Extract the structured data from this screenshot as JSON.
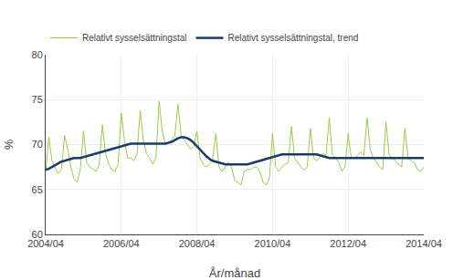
{
  "chart_data": {
    "type": "line",
    "xlabel": "År/månad",
    "ylabel": "%",
    "categories": [
      "2004/04",
      null,
      null,
      null,
      null,
      null,
      null,
      null,
      null,
      null,
      null,
      null,
      null,
      null,
      null,
      null,
      null,
      null,
      null,
      null,
      null,
      null,
      null,
      null,
      "2006/04",
      null,
      null,
      null,
      null,
      null,
      null,
      null,
      null,
      null,
      null,
      null,
      null,
      null,
      null,
      null,
      null,
      null,
      null,
      null,
      null,
      null,
      null,
      null,
      "2008/04",
      null,
      null,
      null,
      null,
      null,
      null,
      null,
      null,
      null,
      null,
      null,
      null,
      null,
      null,
      null,
      null,
      null,
      null,
      null,
      null,
      null,
      null,
      null,
      "2010/04",
      null,
      null,
      null,
      null,
      null,
      null,
      null,
      null,
      null,
      null,
      null,
      null,
      null,
      null,
      null,
      null,
      null,
      null,
      null,
      null,
      null,
      null,
      null,
      "2012/04",
      null,
      null,
      null,
      null,
      null,
      null,
      null,
      null,
      null,
      null,
      null,
      null,
      null,
      null,
      null,
      null,
      null,
      null,
      null,
      null,
      null,
      null,
      null,
      "2014/04"
    ],
    "ylim": [
      60,
      80
    ],
    "yticks": [
      60,
      65,
      70,
      75,
      80
    ],
    "grid": true,
    "legend": "top",
    "series": [
      {
        "name": "Relativt sysselsättningstal",
        "color": "#99cc44",
        "values": [
          67.0,
          70.8,
          68.2,
          67.4,
          66.8,
          67.2,
          71.0,
          69.5,
          67.5,
          66.2,
          65.8,
          67.3,
          71.5,
          68.0,
          67.5,
          67.3,
          67.0,
          67.8,
          72.2,
          69.0,
          67.8,
          67.2,
          67.0,
          67.8,
          73.5,
          70.5,
          68.5,
          68.5,
          68.2,
          69.0,
          73.8,
          70.5,
          69.0,
          68.5,
          67.8,
          68.5,
          74.8,
          71.5,
          70.0,
          70.2,
          70.5,
          71.0,
          74.5,
          71.0,
          70.5,
          70.0,
          69.5,
          69.8,
          71.5,
          68.5,
          67.8,
          67.5,
          67.8,
          68.5,
          71.2,
          67.5,
          67.0,
          67.5,
          68.0,
          67.5,
          66.0,
          65.8,
          65.5,
          67.0,
          67.2,
          67.2,
          67.5,
          67.5,
          67.0,
          65.8,
          65.5,
          66.2,
          71.2,
          67.5,
          67.0,
          67.5,
          67.8,
          68.0,
          72.0,
          68.5,
          68.0,
          67.5,
          67.2,
          67.5,
          71.8,
          68.5,
          68.2,
          68.5,
          69.0,
          68.8,
          73.0,
          68.8,
          68.5,
          68.0,
          67.0,
          67.5,
          71.2,
          68.5,
          68.5,
          68.8,
          69.2,
          68.8,
          73.0,
          69.5,
          68.5,
          68.0,
          67.5,
          67.2,
          72.5,
          68.8,
          68.5,
          68.2,
          67.8,
          67.5,
          71.8,
          68.5,
          68.2,
          68.0,
          67.2,
          67.0,
          67.5
        ]
      },
      {
        "name": "Relativt sysselsättningstal, trend",
        "color": "#1a3a6b",
        "values": [
          67.2,
          67.3,
          67.5,
          67.7,
          67.9,
          68.1,
          68.2,
          68.3,
          68.4,
          68.5,
          68.5,
          68.5,
          68.6,
          68.7,
          68.8,
          68.9,
          69.0,
          69.1,
          69.2,
          69.3,
          69.4,
          69.5,
          69.6,
          69.7,
          69.8,
          69.9,
          70.0,
          70.1,
          70.1,
          70.1,
          70.1,
          70.1,
          70.1,
          70.1,
          70.1,
          70.1,
          70.1,
          70.1,
          70.1,
          70.2,
          70.3,
          70.5,
          70.7,
          70.8,
          70.8,
          70.7,
          70.5,
          70.2,
          69.8,
          69.4,
          69.0,
          68.7,
          68.4,
          68.2,
          68.1,
          68.0,
          67.9,
          67.8,
          67.8,
          67.8,
          67.8,
          67.8,
          67.8,
          67.8,
          67.8,
          67.9,
          68.0,
          68.1,
          68.2,
          68.3,
          68.4,
          68.5,
          68.6,
          68.7,
          68.8,
          68.9,
          68.9,
          68.9,
          68.9,
          68.9,
          68.9,
          68.9,
          68.9,
          68.9,
          68.9,
          68.9,
          68.9,
          68.8,
          68.7,
          68.6,
          68.5,
          68.5,
          68.5,
          68.5,
          68.5,
          68.5,
          68.5,
          68.5,
          68.5,
          68.5,
          68.5,
          68.5,
          68.5,
          68.5,
          68.5,
          68.5,
          68.5,
          68.5,
          68.5,
          68.5,
          68.5,
          68.5,
          68.5,
          68.5,
          68.5,
          68.5,
          68.5,
          68.5,
          68.5,
          68.5,
          68.5
        ]
      }
    ]
  }
}
